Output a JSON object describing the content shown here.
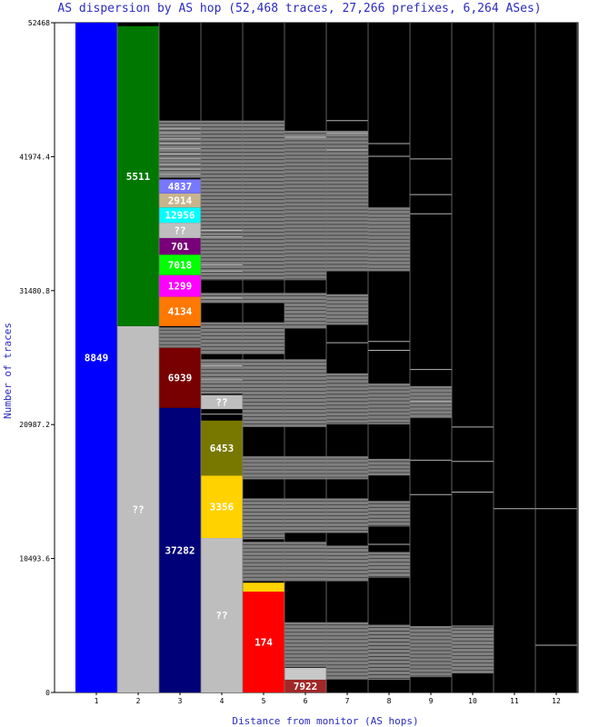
{
  "chart_data": {
    "type": "bar",
    "stacked": true,
    "title": "AS dispersion by AS hop (52,468 traces, 27,266 prefixes, 6,264 ASes)",
    "xlabel": "Distance from monitor (AS hops)",
    "ylabel": "Number of traces",
    "ylim": [
      0,
      52468
    ],
    "yticks": [
      "0",
      "10493.6",
      "20987.2",
      "31480.8",
      "41974.4",
      "52468"
    ],
    "categories": [
      "1",
      "2",
      "3",
      "4",
      "5",
      "6",
      "7",
      "8",
      "9",
      "10",
      "11",
      "12"
    ],
    "grid": false,
    "colors": {
      "background": "#000000",
      "frame": "#ffffff",
      "minor_segment": "#808080",
      "divider": "#b4b4b4"
    },
    "segments": [
      {
        "hop": 1,
        "label": "8849",
        "y0": 0,
        "y1": 52468,
        "color": "#0000ff"
      },
      {
        "hop": 2,
        "label": "??",
        "y0": 0,
        "y1": 28700,
        "color": "#bebebe"
      },
      {
        "hop": 2,
        "label": "5511",
        "y0": 28700,
        "y1": 52200,
        "color": "#007800"
      },
      {
        "hop": 3,
        "label": "37282",
        "y0": 0,
        "y1": 22300,
        "color": "#000078"
      },
      {
        "hop": 3,
        "label": "6939",
        "y0": 22300,
        "y1": 27000,
        "color": "#780000"
      },
      {
        "hop": 3,
        "label": "4134",
        "y0": 28700,
        "y1": 31000,
        "color": "#ff7800"
      },
      {
        "hop": 3,
        "label": "1299",
        "y0": 31000,
        "y1": 32700,
        "color": "#ff00ff"
      },
      {
        "hop": 3,
        "label": "7018",
        "y0": 32700,
        "y1": 34300,
        "color": "#00ff00"
      },
      {
        "hop": 3,
        "label": "701",
        "y0": 34300,
        "y1": 35600,
        "color": "#780078"
      },
      {
        "hop": 3,
        "label": "??",
        "y0": 35600,
        "y1": 36800,
        "color": "#bebebe"
      },
      {
        "hop": 3,
        "label": "12956",
        "y0": 36800,
        "y1": 38000,
        "color": "#00ffff"
      },
      {
        "hop": 3,
        "label": "2914",
        "y0": 38000,
        "y1": 39100,
        "color": "#c8b48c"
      },
      {
        "hop": 3,
        "label": "4837",
        "y0": 39100,
        "y1": 40200,
        "color": "#7878ff"
      },
      {
        "hop": 4,
        "label": "??",
        "y0": 0,
        "y1": 12100,
        "color": "#bebebe"
      },
      {
        "hop": 4,
        "label": "3356",
        "y0": 12100,
        "y1": 17000,
        "color": "#ffd200"
      },
      {
        "hop": 4,
        "label": "6453",
        "y0": 17000,
        "y1": 21300,
        "color": "#787800"
      },
      {
        "hop": 4,
        "label": "??",
        "y0": 22200,
        "y1": 23300,
        "color": "#bebebe"
      },
      {
        "hop": 5,
        "label": "174",
        "y0": 0,
        "y1": 7900,
        "color": "#ff0000"
      },
      {
        "hop": 5,
        "label": "",
        "y0": 7900,
        "y1": 8600,
        "color": "#ffd200"
      },
      {
        "hop": 6,
        "label": "7922",
        "y0": 0,
        "y1": 1000,
        "color": "#a02828"
      },
      {
        "hop": 6,
        "label": "",
        "y0": 1000,
        "y1": 1900,
        "color": "#c8c8c8"
      }
    ],
    "minor_bands": [
      {
        "hop": 3,
        "y0": 27000,
        "y1": 28600
      },
      {
        "hop": 3,
        "y0": 40300,
        "y1": 44800
      },
      {
        "hop": 4,
        "y0": 23400,
        "y1": 26100
      },
      {
        "hop": 4,
        "y0": 26500,
        "y1": 29000
      },
      {
        "hop": 4,
        "y0": 30500,
        "y1": 31300
      },
      {
        "hop": 4,
        "y0": 32300,
        "y1": 44800
      },
      {
        "hop": 5,
        "y0": 8700,
        "y1": 11800
      },
      {
        "hop": 5,
        "y0": 12000,
        "y1": 15200
      },
      {
        "hop": 5,
        "y0": 16700,
        "y1": 18500
      },
      {
        "hop": 5,
        "y0": 20800,
        "y1": 26100
      },
      {
        "hop": 5,
        "y0": 26500,
        "y1": 29000
      },
      {
        "hop": 5,
        "y0": 30500,
        "y1": 31300
      },
      {
        "hop": 5,
        "y0": 32300,
        "y1": 44800
      },
      {
        "hop": 6,
        "y0": 2000,
        "y1": 5500
      },
      {
        "hop": 6,
        "y0": 8700,
        "y1": 11800
      },
      {
        "hop": 6,
        "y0": 12500,
        "y1": 15200
      },
      {
        "hop": 6,
        "y0": 16700,
        "y1": 18500
      },
      {
        "hop": 6,
        "y0": 20800,
        "y1": 26100
      },
      {
        "hop": 6,
        "y0": 28500,
        "y1": 31300
      },
      {
        "hop": 6,
        "y0": 32300,
        "y1": 44000
      },
      {
        "hop": 7,
        "y0": 1000,
        "y1": 5500
      },
      {
        "hop": 7,
        "y0": 8700,
        "y1": 11500
      },
      {
        "hop": 7,
        "y0": 12500,
        "y1": 15200
      },
      {
        "hop": 7,
        "y0": 16700,
        "y1": 18500
      },
      {
        "hop": 7,
        "y0": 21000,
        "y1": 25000
      },
      {
        "hop": 7,
        "y0": 28800,
        "y1": 31200
      },
      {
        "hop": 7,
        "y0": 33000,
        "y1": 44000
      },
      {
        "hop": 8,
        "y0": 1000,
        "y1": 5300
      },
      {
        "hop": 8,
        "y0": 9000,
        "y1": 11000
      },
      {
        "hop": 8,
        "y0": 13000,
        "y1": 15000
      },
      {
        "hop": 8,
        "y0": 17000,
        "y1": 18300
      },
      {
        "hop": 8,
        "y0": 21000,
        "y1": 24200
      },
      {
        "hop": 8,
        "y0": 33000,
        "y1": 38000
      },
      {
        "hop": 9,
        "y0": 1200,
        "y1": 5200
      },
      {
        "hop": 9,
        "y0": 21500,
        "y1": 24000
      },
      {
        "hop": 10,
        "y0": 1500,
        "y1": 5100
      }
    ],
    "dividers": [
      {
        "hop": 3,
        "values": [
          40600,
          41000,
          41400,
          41800,
          42200,
          42600,
          43000,
          43400,
          43800,
          44200,
          30400,
          29800
        ]
      },
      {
        "hop": 4,
        "values": [
          36200,
          35700,
          33500,
          33000,
          30900,
          21800,
          24500,
          25600
        ]
      },
      {
        "hop": 6,
        "values": [
          43500,
          1900
        ]
      },
      {
        "hop": 7,
        "values": [
          44800,
          43800,
          42500,
          27400
        ]
      },
      {
        "hop": 8,
        "values": [
          43000,
          42000,
          27500,
          26800,
          11600
        ]
      },
      {
        "hop": 9,
        "values": [
          41800,
          39000,
          37500,
          25300,
          22800,
          18200,
          15500
        ]
      },
      {
        "hop": 10,
        "values": [
          20800,
          18100,
          15700,
          5200
        ]
      },
      {
        "hop": 11,
        "values": [
          14400
        ]
      },
      {
        "hop": 12,
        "values": [
          14400,
          3700
        ]
      }
    ]
  }
}
